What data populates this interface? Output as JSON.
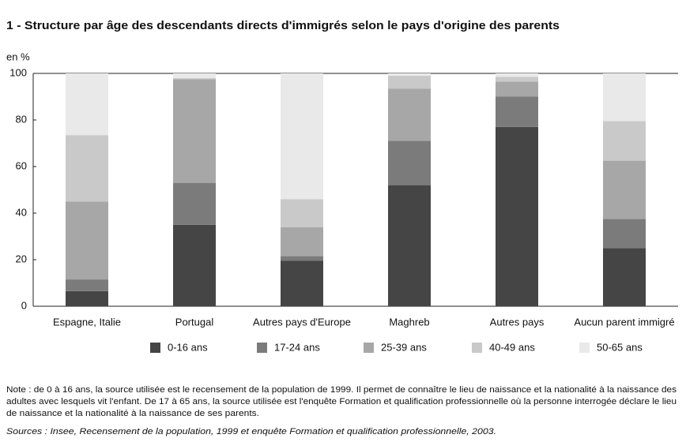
{
  "chart_data": {
    "type": "stacked_bar",
    "title": "1 - Structure par âge des descendants directs d'immigrés selon le pays d'origine des parents",
    "ylabel": "en %",
    "categories": [
      "Espagne, Italie",
      "Portugal",
      "Autres pays d'Europe",
      "Maghreb",
      "Autres pays",
      "Aucun parent immigré"
    ],
    "series": [
      {
        "name": "0-16 ans",
        "color": "#454545",
        "values": [
          6.5,
          35,
          19.5,
          52,
          77,
          25
        ]
      },
      {
        "name": "17-24 ans",
        "color": "#7b7b7b",
        "values": [
          5,
          18,
          2,
          19,
          13,
          12.5
        ]
      },
      {
        "name": "25-39 ans",
        "color": "#a7a7a7",
        "values": [
          33.5,
          44.5,
          12.5,
          22.5,
          6.5,
          25
        ]
      },
      {
        "name": "40-49 ans",
        "color": "#c9c9c9",
        "values": [
          28.5,
          0.5,
          12,
          5.5,
          2,
          17
        ]
      },
      {
        "name": "50-65 ans",
        "color": "#e9e9e9",
        "values": [
          26.5,
          2,
          54,
          1,
          1.5,
          20.5
        ]
      }
    ],
    "ylim": [
      0,
      100
    ],
    "yticks": [
      0,
      20,
      40,
      60,
      80,
      100
    ],
    "grid": false,
    "legend": "bottom",
    "note": [
      "Note : de 0 à 16 ans, la source utilisée est le recensement de la population de 1999. Il permet de connaître le lieu de naissance et la nationalité à la naissance des",
      "adultes avec lesquels vit l'enfant. De 17 à 65 ans, la source utilisée est l'enquête Formation et qualification professionnelle où la personne interrogée déclare le lieu",
      "de naissance et la nationalité à la naissance de ses parents."
    ],
    "source": "Sources : Insee, Recensement de la population, 1999 et enquête Formation et qualification professionnelle, 2003."
  }
}
